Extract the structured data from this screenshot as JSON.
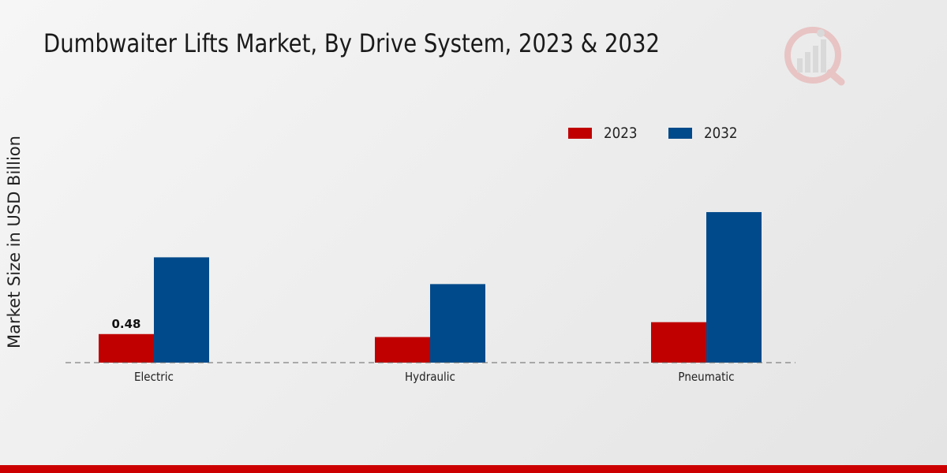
{
  "title": "Dumbwaiter Lifts Market, By Drive System, 2023 & 2032",
  "logo_icon": "market-research-logo-icon",
  "accent_color": "#cc0000",
  "chart_data": {
    "type": "bar",
    "title": "Dumbwaiter Lifts Market, By Drive System, 2023 & 2032",
    "xlabel": "",
    "ylabel": "Market Size in USD Billion",
    "categories": [
      "Electric",
      "Hydraulic",
      "Pneumatic"
    ],
    "series": [
      {
        "name": "2023",
        "color": "#c00000",
        "values": [
          0.48,
          0.43,
          0.68
        ]
      },
      {
        "name": "2032",
        "color": "#004a8b",
        "values": [
          1.77,
          1.32,
          2.53
        ]
      }
    ],
    "data_labels": [
      {
        "series": 0,
        "category": 0,
        "text": "0.48"
      }
    ],
    "ylim": [
      0,
      5.3
    ],
    "grid": false,
    "legend_position": "top-right"
  }
}
